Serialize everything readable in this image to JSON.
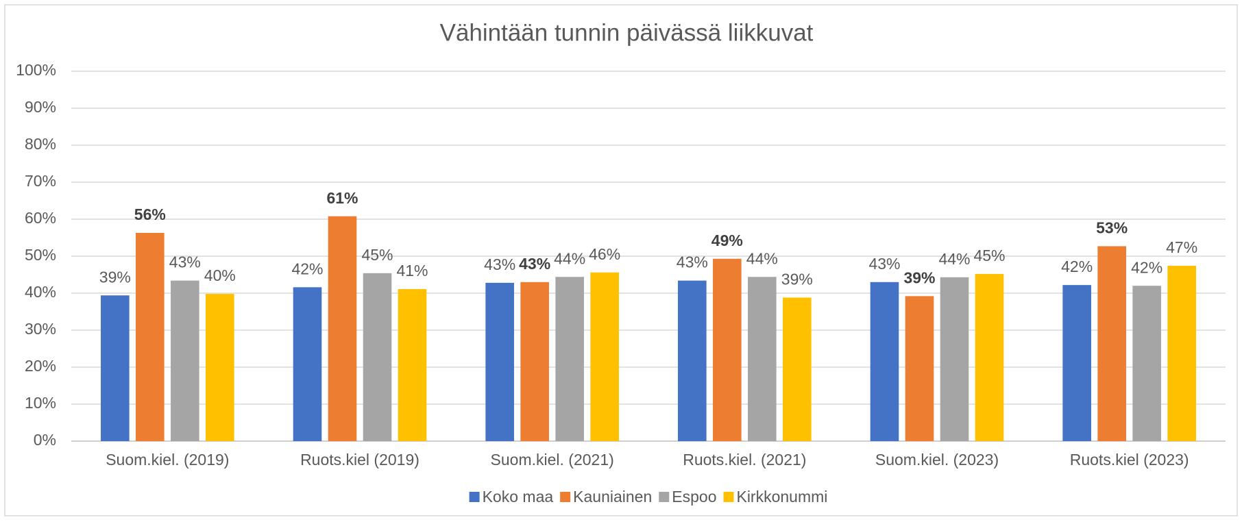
{
  "chart_data": {
    "type": "bar",
    "title": "Vähintään tunnin päivässä liikkuvat",
    "categories": [
      "Suom.kiel. (2019)",
      "Ruots.kiel (2019)",
      "Suom.kiel. (2021)",
      "Ruots.kiel. (2021)",
      "Suom.kiel. (2023)",
      "Ruots.kiel (2023)"
    ],
    "series": [
      {
        "name": "Koko maa",
        "color": "#4472c4",
        "label_bold": false,
        "values": [
          39.4,
          41.6,
          42.8,
          43.4,
          43.0,
          42.2
        ],
        "value_labels": [
          "39%",
          "42%",
          "43%",
          "43%",
          "43%",
          "42%"
        ]
      },
      {
        "name": "Kauniainen",
        "color": "#ed7d31",
        "label_bold": true,
        "values": [
          56.3,
          60.8,
          43.0,
          49.3,
          39.2,
          52.7
        ],
        "value_labels": [
          "56%",
          "61%",
          "43%",
          "49%",
          "39%",
          "53%"
        ]
      },
      {
        "name": "Espoo",
        "color": "#a5a5a5",
        "label_bold": false,
        "values": [
          43.4,
          45.4,
          44.4,
          44.4,
          44.3,
          42.0
        ],
        "value_labels": [
          "43%",
          "45%",
          "44%",
          "44%",
          "44%",
          "42%"
        ]
      },
      {
        "name": "Kirkkonummi",
        "color": "#ffc000",
        "label_bold": false,
        "values": [
          39.8,
          41.1,
          45.6,
          38.8,
          45.2,
          47.4
        ],
        "value_labels": [
          "40%",
          "41%",
          "46%",
          "39%",
          "45%",
          "47%"
        ]
      }
    ],
    "ylim": [
      0,
      100
    ],
    "yticks": [
      {
        "value": 0,
        "label": "0%"
      },
      {
        "value": 10,
        "label": "10%"
      },
      {
        "value": 20,
        "label": "20%"
      },
      {
        "value": 30,
        "label": "30%"
      },
      {
        "value": 40,
        "label": "40%"
      },
      {
        "value": 50,
        "label": "50%"
      },
      {
        "value": 60,
        "label": "60%"
      },
      {
        "value": 70,
        "label": "70%"
      },
      {
        "value": 80,
        "label": "80%"
      },
      {
        "value": 90,
        "label": "90%"
      },
      {
        "value": 100,
        "label": "100%"
      }
    ],
    "grid": true,
    "legend": "bottom"
  }
}
